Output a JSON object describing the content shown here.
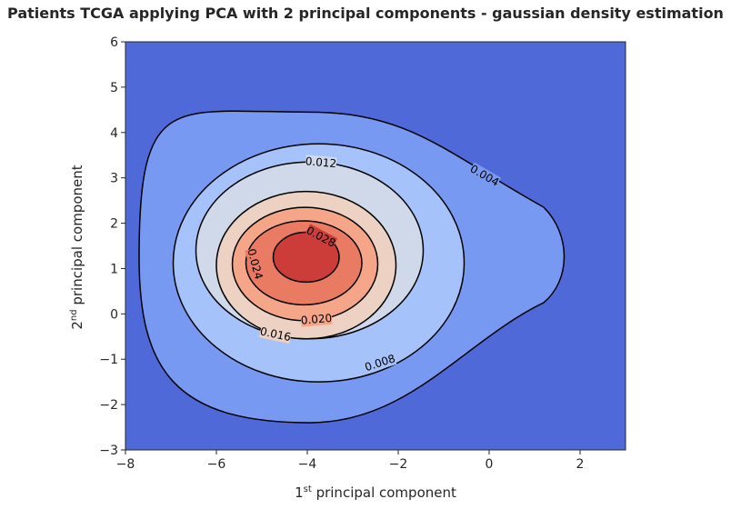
{
  "chart_data": {
    "type": "contour",
    "title": "Patients TCGA applying PCA with 2 principal components - gaussian density estimation",
    "xlabel": {
      "prefix": "1",
      "sup": "st",
      "suffix": " principal component"
    },
    "ylabel": {
      "prefix": "2",
      "sup": "nd",
      "suffix": " principal component"
    },
    "xlim": [
      -8,
      3
    ],
    "ylim": [
      -3,
      6
    ],
    "xticks": [
      -8,
      -6,
      -4,
      -2,
      0,
      2
    ],
    "yticks": [
      -3,
      -2,
      -1,
      0,
      1,
      2,
      3,
      4,
      5,
      6
    ],
    "xtick_labels": [
      "−8",
      "−6",
      "−4",
      "−2",
      "0",
      "2"
    ],
    "ytick_labels": [
      "−3",
      "−2",
      "−1",
      "0",
      "1",
      "2",
      "3",
      "4",
      "5",
      "6"
    ],
    "colormap": "coolwarm",
    "grid": false,
    "background_color": "#4f69d9",
    "levels": [
      {
        "level": 0.004,
        "label": "0.004",
        "fill": "#7799f2",
        "x_left": -7.7,
        "x_right": 1.8,
        "y_bottom": -2.4,
        "y_top": 4.45
      },
      {
        "level": 0.008,
        "label": "0.008",
        "fill": "#a6c2fb",
        "x_left": -6.95,
        "x_right": -0.55,
        "y_bottom": -1.5,
        "y_top": 3.75
      },
      {
        "level": 0.012,
        "label": "0.012",
        "fill": "#cfd9ea",
        "x_left": -6.45,
        "x_right": -1.45,
        "y_bottom": -0.55,
        "y_top": 3.35
      },
      {
        "level": 0.016,
        "label": "0.016",
        "fill": "#edd1c3",
        "x_left": -6.0,
        "x_right": -2.05,
        "y_bottom": -0.55,
        "y_top": 2.7
      },
      {
        "level": 0.02,
        "label": "0.020",
        "fill": "#f6a688",
        "x_left": -5.65,
        "x_right": -2.45,
        "y_bottom": -0.15,
        "y_top": 2.35
      },
      {
        "level": 0.024,
        "label": "0.024",
        "fill": "#e97b63",
        "x_left": -5.35,
        "x_right": -2.8,
        "y_bottom": 0.2,
        "y_top": 2.05
      },
      {
        "level": 0.028,
        "label": "0.028",
        "fill": "#cc3d3a",
        "x_left": -4.75,
        "x_right": -3.3,
        "y_bottom": 0.7,
        "y_top": 1.8
      }
    ],
    "center": {
      "x": -3.95,
      "y": 1.25
    }
  }
}
